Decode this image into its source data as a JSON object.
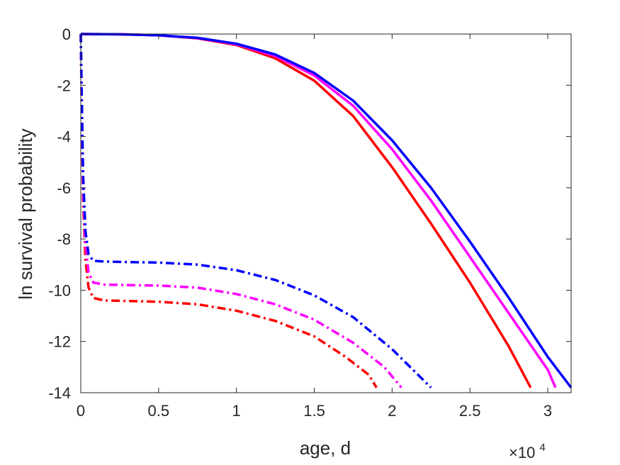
{
  "chart_data": {
    "type": "line",
    "xlabel": "age, d",
    "ylabel": "ln survival probability",
    "x_multiplier": {
      "base": "×10",
      "exponent": "4"
    },
    "xlim": [
      0,
      31500
    ],
    "ylim": [
      -14,
      0
    ],
    "xticks": [
      0,
      5000,
      10000,
      15000,
      20000,
      25000,
      30000
    ],
    "xtick_labels": [
      "0",
      "0.5",
      "1",
      "1.5",
      "2",
      "2.5",
      "3"
    ],
    "yticks": [
      0,
      -2,
      -4,
      -6,
      -8,
      -10,
      -12,
      -14
    ],
    "ytick_labels": [
      "0",
      "-2",
      "-4",
      "-6",
      "-8",
      "-10",
      "-12",
      "-14"
    ],
    "grid": false,
    "colors": {
      "red": "#ff0000",
      "magenta": "#ff00ff",
      "blue": "#0000ff",
      "axis": "#262626"
    },
    "series": [
      {
        "color": "#ff0000",
        "style": "solid",
        "points": [
          [
            0,
            0
          ],
          [
            2500,
            -0.01
          ],
          [
            5000,
            -0.05
          ],
          [
            7500,
            -0.17
          ],
          [
            10000,
            -0.43
          ],
          [
            12500,
            -0.95
          ],
          [
            15000,
            -1.82
          ],
          [
            17500,
            -3.2
          ],
          [
            20000,
            -5.2
          ],
          [
            22500,
            -7.4
          ],
          [
            25000,
            -9.7
          ],
          [
            27500,
            -12.2
          ],
          [
            28900,
            -13.8
          ]
        ]
      },
      {
        "color": "#ff00ff",
        "style": "solid",
        "points": [
          [
            0,
            0
          ],
          [
            2500,
            -0.01
          ],
          [
            5000,
            -0.05
          ],
          [
            7500,
            -0.16
          ],
          [
            10000,
            -0.4
          ],
          [
            12500,
            -0.86
          ],
          [
            15000,
            -1.62
          ],
          [
            17500,
            -2.8
          ],
          [
            20000,
            -4.5
          ],
          [
            22500,
            -6.5
          ],
          [
            25000,
            -8.7
          ],
          [
            27500,
            -10.9
          ],
          [
            30000,
            -13.1
          ],
          [
            30500,
            -13.8
          ]
        ]
      },
      {
        "color": "#0000ff",
        "style": "solid",
        "points": [
          [
            0,
            0
          ],
          [
            2500,
            -0.01
          ],
          [
            5000,
            -0.05
          ],
          [
            7500,
            -0.15
          ],
          [
            10000,
            -0.38
          ],
          [
            12500,
            -0.8
          ],
          [
            15000,
            -1.52
          ],
          [
            17500,
            -2.6
          ],
          [
            20000,
            -4.15
          ],
          [
            22500,
            -6.0
          ],
          [
            25000,
            -8.1
          ],
          [
            27500,
            -10.3
          ],
          [
            30000,
            -12.6
          ],
          [
            31500,
            -13.8
          ]
        ]
      },
      {
        "color": "#ff0000",
        "style": "dashdot",
        "points": [
          [
            0,
            0
          ],
          [
            50,
            -2.5
          ],
          [
            150,
            -6.5
          ],
          [
            300,
            -8.8
          ],
          [
            500,
            -9.9
          ],
          [
            800,
            -10.3
          ],
          [
            1500,
            -10.4
          ],
          [
            3000,
            -10.42
          ],
          [
            5000,
            -10.45
          ],
          [
            7500,
            -10.55
          ],
          [
            10000,
            -10.8
          ],
          [
            12500,
            -11.2
          ],
          [
            15000,
            -11.8
          ],
          [
            17000,
            -12.6
          ],
          [
            18500,
            -13.3
          ],
          [
            19000,
            -13.8
          ]
        ]
      },
      {
        "color": "#ff00ff",
        "style": "dashdot",
        "points": [
          [
            0,
            0
          ],
          [
            50,
            -2.2
          ],
          [
            150,
            -6.0
          ],
          [
            300,
            -8.2
          ],
          [
            500,
            -9.3
          ],
          [
            800,
            -9.7
          ],
          [
            1500,
            -9.78
          ],
          [
            3000,
            -9.8
          ],
          [
            5000,
            -9.82
          ],
          [
            7500,
            -9.9
          ],
          [
            10000,
            -10.15
          ],
          [
            12500,
            -10.55
          ],
          [
            15000,
            -11.15
          ],
          [
            17500,
            -12.05
          ],
          [
            19500,
            -13.0
          ],
          [
            20600,
            -13.8
          ]
        ]
      },
      {
        "color": "#0000ff",
        "style": "dashdot",
        "points": [
          [
            0,
            0
          ],
          [
            50,
            -2.0
          ],
          [
            150,
            -5.5
          ],
          [
            300,
            -7.7
          ],
          [
            500,
            -8.6
          ],
          [
            800,
            -8.85
          ],
          [
            1500,
            -8.88
          ],
          [
            3000,
            -8.9
          ],
          [
            5000,
            -8.92
          ],
          [
            7500,
            -9.0
          ],
          [
            10000,
            -9.22
          ],
          [
            12500,
            -9.6
          ],
          [
            15000,
            -10.2
          ],
          [
            17500,
            -11.05
          ],
          [
            20000,
            -12.3
          ],
          [
            21500,
            -13.2
          ],
          [
            22500,
            -13.8
          ]
        ]
      }
    ]
  }
}
